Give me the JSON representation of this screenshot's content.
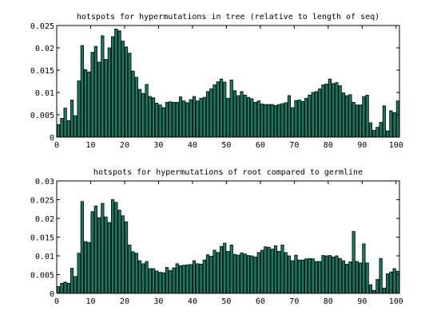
{
  "chart_data": [
    {
      "type": "bar",
      "title": "hotspots for hypermutations in tree (relative to length of seq)",
      "xlabel": "",
      "ylabel": "",
      "xlim": [
        0,
        101
      ],
      "ylim": [
        0,
        0.025
      ],
      "xticks": [
        0,
        10,
        20,
        30,
        40,
        50,
        60,
        70,
        80,
        90,
        100
      ],
      "yticks": [
        0,
        0.005,
        0.01,
        0.015,
        0.02,
        0.025
      ],
      "ytick_labels": [
        "0",
        "0.005",
        "0.01",
        "0.015",
        "0.02",
        "0.025"
      ],
      "grid": false,
      "bar_color": "#1a7a62",
      "values": [
        0.0028,
        0.0042,
        0.0065,
        0.0037,
        0.0083,
        0.0048,
        0.0126,
        0.0205,
        0.0151,
        0.0146,
        0.019,
        0.0203,
        0.0168,
        0.0227,
        0.0174,
        0.02,
        0.0225,
        0.0242,
        0.0238,
        0.0215,
        0.0202,
        0.0188,
        0.0148,
        0.0134,
        0.0107,
        0.0098,
        0.0118,
        0.0091,
        0.0088,
        0.0076,
        0.0072,
        0.0066,
        0.0078,
        0.0079,
        0.0078,
        0.0078,
        0.009,
        0.0081,
        0.0077,
        0.0084,
        0.0091,
        0.0081,
        0.0087,
        0.0089,
        0.0102,
        0.0108,
        0.0117,
        0.0124,
        0.013,
        0.0123,
        0.0087,
        0.0128,
        0.0104,
        0.0093,
        0.0102,
        0.0094,
        0.0089,
        0.0086,
        0.0078,
        0.0081,
        0.0074,
        0.0073,
        0.0073,
        0.0073,
        0.0071,
        0.0073,
        0.0075,
        0.0077,
        0.0093,
        0.0066,
        0.0082,
        0.0083,
        0.008,
        0.0087,
        0.0094,
        0.01,
        0.0102,
        0.0108,
        0.0117,
        0.0119,
        0.013,
        0.012,
        0.0122,
        0.0115,
        0.0099,
        0.0093,
        0.0095,
        0.0078,
        0.0072,
        0.0072,
        0.0091,
        0.0094,
        0.0032,
        0.0015,
        0.0022,
        0.0033,
        0.007,
        0.0014,
        0.0059,
        0.0055,
        0.0081
      ]
    },
    {
      "type": "bar",
      "title": "hotspots for hypermutations of root compared to germline",
      "xlabel": "",
      "ylabel": "",
      "xlim": [
        0,
        101
      ],
      "ylim": [
        0,
        0.03
      ],
      "xticks": [
        0,
        10,
        20,
        30,
        40,
        50,
        60,
        70,
        80,
        90,
        100
      ],
      "yticks": [
        0,
        0.005,
        0.01,
        0.015,
        0.02,
        0.025,
        0.03
      ],
      "ytick_labels": [
        "0",
        "0.005",
        "0.01",
        "0.015",
        "0.02",
        "0.025",
        "0.03"
      ],
      "grid": false,
      "bar_color": "#1a7a62",
      "values": [
        0.0018,
        0.0027,
        0.003,
        0.0027,
        0.0067,
        0.0045,
        0.0107,
        0.0245,
        0.0138,
        0.0136,
        0.0218,
        0.0233,
        0.0202,
        0.024,
        0.0204,
        0.0189,
        0.025,
        0.0243,
        0.0222,
        0.0207,
        0.0191,
        0.0129,
        0.0111,
        0.0107,
        0.0087,
        0.0079,
        0.0085,
        0.0066,
        0.0066,
        0.006,
        0.0056,
        0.0055,
        0.0069,
        0.0061,
        0.0068,
        0.0079,
        0.0074,
        0.0075,
        0.0076,
        0.0077,
        0.0087,
        0.0079,
        0.0078,
        0.0089,
        0.0103,
        0.0099,
        0.0115,
        0.0109,
        0.0125,
        0.0134,
        0.0112,
        0.0129,
        0.0104,
        0.0102,
        0.0108,
        0.0105,
        0.0101,
        0.01,
        0.0097,
        0.0109,
        0.0115,
        0.0124,
        0.0123,
        0.0118,
        0.0127,
        0.0112,
        0.0129,
        0.0109,
        0.01,
        0.0087,
        0.0102,
        0.0089,
        0.0089,
        0.0092,
        0.0093,
        0.0092,
        0.0085,
        0.0085,
        0.0101,
        0.01,
        0.0101,
        0.0097,
        0.01,
        0.0093,
        0.0087,
        0.0078,
        0.0084,
        0.0165,
        0.0085,
        0.0081,
        0.0132,
        0.0081,
        0.0023,
        0.0008,
        0.0037,
        0.0093,
        0.0014,
        0.0052,
        0.0057,
        0.0066,
        0.0059
      ]
    }
  ]
}
